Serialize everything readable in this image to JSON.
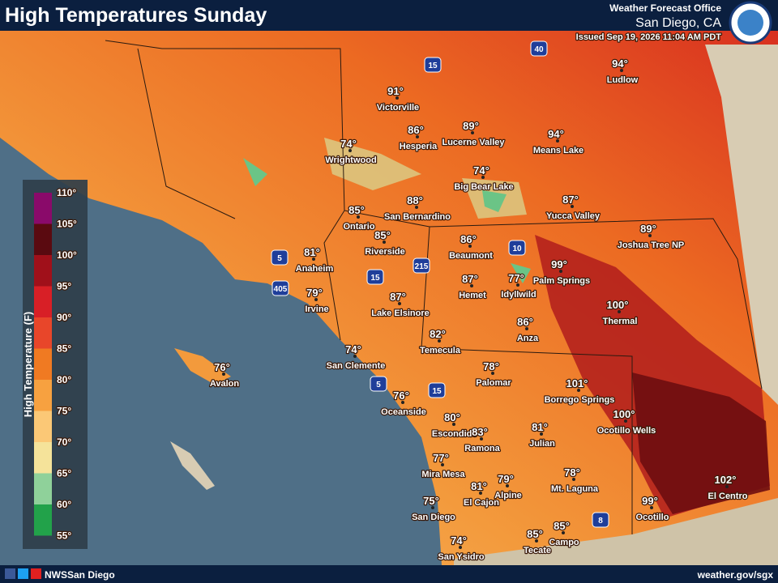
{
  "header": {
    "title": "High Temperatures Sunday",
    "office": "Weather Forecast Office",
    "location": "San Diego, CA",
    "issued": "Issued Sep 19, 2026 11:04 AM PDT"
  },
  "legend": {
    "title": "High Temperature (F)",
    "ticks": [
      "110°",
      "105°",
      "100°",
      "95°",
      "90°",
      "85°",
      "80°",
      "75°",
      "70°",
      "65°",
      "60°",
      "55°"
    ]
  },
  "cities": [
    {
      "temp": "94°",
      "name": "Ludlow"
    },
    {
      "temp": "91°",
      "name": "Victorville"
    },
    {
      "temp": "86°",
      "name": "Hesperia"
    },
    {
      "temp": "89°",
      "name": "Lucerne Valley"
    },
    {
      "temp": "94°",
      "name": "Means Lake"
    },
    {
      "temp": "74°",
      "name": "Wrightwood"
    },
    {
      "temp": "74°",
      "name": "Big Bear Lake"
    },
    {
      "temp": "87°",
      "name": "Yucca Valley"
    },
    {
      "temp": "85°",
      "name": "Ontario"
    },
    {
      "temp": "88°",
      "name": "San Bernardino"
    },
    {
      "temp": "89°",
      "name": "Joshua Tree NP"
    },
    {
      "temp": "85°",
      "name": "Riverside"
    },
    {
      "temp": "86°",
      "name": "Beaumont"
    },
    {
      "temp": "81°",
      "name": "Anaheim"
    },
    {
      "temp": "99°",
      "name": "Palm Springs"
    },
    {
      "temp": "77°",
      "name": "Idyllwild"
    },
    {
      "temp": "87°",
      "name": "Hemet"
    },
    {
      "temp": "79°",
      "name": "Irvine"
    },
    {
      "temp": "87°",
      "name": "Lake Elsinore"
    },
    {
      "temp": "100°",
      "name": "Thermal"
    },
    {
      "temp": "86°",
      "name": "Anza"
    },
    {
      "temp": "82°",
      "name": "Temecula"
    },
    {
      "temp": "74°",
      "name": "San Clemente"
    },
    {
      "temp": "76°",
      "name": "Avalon"
    },
    {
      "temp": "78°",
      "name": "Palomar"
    },
    {
      "temp": "101°",
      "name": "Borrego Springs"
    },
    {
      "temp": "76°",
      "name": "Oceanside"
    },
    {
      "temp": "100°",
      "name": "Ocotillo Wells"
    },
    {
      "temp": "80°",
      "name": "Escondido"
    },
    {
      "temp": "83°",
      "name": "Ramona"
    },
    {
      "temp": "81°",
      "name": "Julian"
    },
    {
      "temp": "77°",
      "name": "Mira Mesa"
    },
    {
      "temp": "78°",
      "name": "Mt. Laguna"
    },
    {
      "temp": "102°",
      "name": "El Centro"
    },
    {
      "temp": "81°",
      "name": "El Cajon"
    },
    {
      "temp": "79°",
      "name": "Alpine"
    },
    {
      "temp": "99°",
      "name": "Ocotillo"
    },
    {
      "temp": "75°",
      "name": "San Diego"
    },
    {
      "temp": "85°",
      "name": "Campo"
    },
    {
      "temp": "85°",
      "name": "Tecate"
    },
    {
      "temp": "74°",
      "name": "San Ysidro"
    }
  ],
  "shields": [
    "15",
    "40",
    "10",
    "5",
    "405",
    "215",
    "15",
    "5",
    "15",
    "8"
  ],
  "footer": {
    "social": "NWSSan Diego",
    "url": "weather.gov/sgx"
  }
}
